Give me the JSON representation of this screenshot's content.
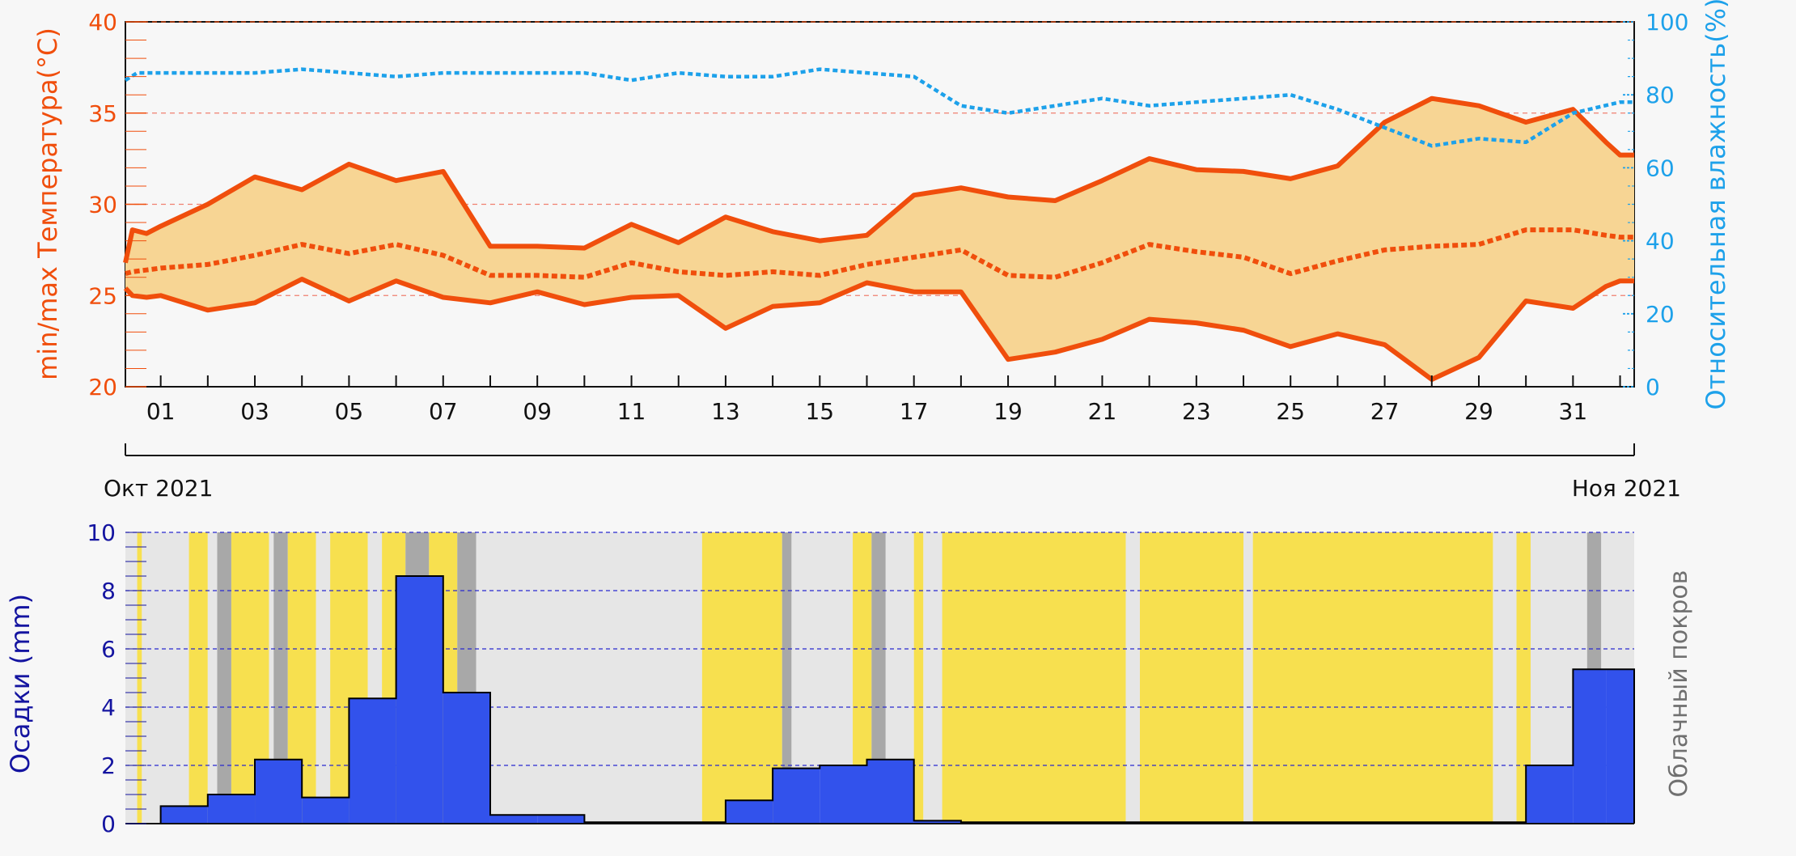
{
  "chart_data": [
    {
      "type": "line",
      "ylabel_left": "min/max Температура(°C)",
      "ylabel_right": "Относительная влажность(%)",
      "ylim_left": [
        20,
        40
      ],
      "ylim_right": [
        0,
        100
      ],
      "yticks_left": [
        "20",
        "25",
        "30",
        "35",
        "40"
      ],
      "yticks_right": [
        "0",
        "20",
        "40",
        "60",
        "80",
        "100"
      ],
      "x_tick_labels": [
        "01",
        "03",
        "05",
        "07",
        "09",
        "11",
        "13",
        "15",
        "17",
        "19",
        "21",
        "23",
        "25",
        "27",
        "29",
        "31"
      ],
      "x_tick_days": [
        1,
        3,
        5,
        7,
        9,
        11,
        13,
        15,
        17,
        19,
        21,
        23,
        25,
        27,
        29,
        31
      ],
      "xlim_days": [
        0.25,
        32.3
      ],
      "month_labels": {
        "left": "Окт 2021",
        "right": "Ноя 2021"
      },
      "grid": "dashed horizontal at 25, 30, 35 °C",
      "colors": {
        "temperature": "#f04e0c",
        "band_fill": "#f7d594",
        "humidity": "#1da1ea",
        "temp_grid": "#f08070",
        "axis": "#111111"
      },
      "days": [
        0.25,
        0.4,
        0.7,
        1,
        2,
        3,
        4,
        5,
        6,
        7,
        8,
        9,
        10,
        11,
        12,
        13,
        14,
        15,
        16,
        17,
        18,
        19,
        20,
        21,
        22,
        23,
        24,
        25,
        26,
        27,
        28,
        29,
        30,
        31,
        31.7,
        32,
        32.3
      ],
      "series": [
        {
          "name": "max",
          "style": "solid",
          "values": [
            26.8,
            28.6,
            28.4,
            28.8,
            30.0,
            31.5,
            30.8,
            32.2,
            31.3,
            31.8,
            27.7,
            27.7,
            27.6,
            28.9,
            27.9,
            29.3,
            28.5,
            28.0,
            28.3,
            30.5,
            30.9,
            30.4,
            30.2,
            31.3,
            32.5,
            31.9,
            31.8,
            31.4,
            32.1,
            34.5,
            35.8,
            35.4,
            34.5,
            35.2,
            33.4,
            32.7,
            32.7
          ]
        },
        {
          "name": "mean",
          "style": "dotted",
          "values": [
            26.2,
            26.3,
            26.4,
            26.5,
            26.7,
            27.2,
            27.8,
            27.3,
            27.8,
            27.2,
            26.1,
            26.1,
            26.0,
            26.8,
            26.3,
            26.1,
            26.3,
            26.1,
            26.7,
            27.1,
            27.5,
            26.1,
            26.0,
            26.8,
            27.8,
            27.4,
            27.1,
            26.2,
            26.9,
            27.5,
            27.7,
            27.8,
            28.6,
            28.6,
            28.3,
            28.2,
            28.2
          ]
        },
        {
          "name": "min",
          "style": "solid",
          "values": [
            25.4,
            25.0,
            24.9,
            25.0,
            24.2,
            24.6,
            25.9,
            24.7,
            25.8,
            24.9,
            24.6,
            25.2,
            24.5,
            24.9,
            25.0,
            23.2,
            24.4,
            24.6,
            25.7,
            25.2,
            25.2,
            21.5,
            21.9,
            22.6,
            23.7,
            23.5,
            23.1,
            22.2,
            22.9,
            22.3,
            20.4,
            21.6,
            24.7,
            24.3,
            25.5,
            25.8,
            25.8
          ]
        },
        {
          "name": "humidity",
          "axis": "right",
          "style": "dotted",
          "points": [
            [
              0.25,
              84
            ],
            [
              0.5,
              86
            ],
            [
              1,
              86
            ],
            [
              3,
              86
            ],
            [
              4,
              87
            ],
            [
              5,
              86
            ],
            [
              6,
              85
            ],
            [
              7,
              86
            ],
            [
              9,
              86
            ],
            [
              10,
              86
            ],
            [
              11,
              84
            ],
            [
              12,
              86
            ],
            [
              13,
              85
            ],
            [
              14,
              85
            ],
            [
              15,
              87
            ],
            [
              16,
              86
            ],
            [
              17,
              85
            ],
            [
              18,
              77
            ],
            [
              19,
              75
            ],
            [
              20,
              77
            ],
            [
              21,
              79
            ],
            [
              22,
              77
            ],
            [
              23,
              78
            ],
            [
              24,
              79
            ],
            [
              25,
              80
            ],
            [
              26,
              76
            ],
            [
              27,
              71
            ],
            [
              28,
              66
            ],
            [
              29,
              68
            ],
            [
              30,
              67
            ],
            [
              31,
              75
            ],
            [
              32,
              78
            ],
            [
              32.3,
              78
            ]
          ]
        }
      ]
    },
    {
      "type": "bar",
      "ylabel_left": "Осадки (mm)",
      "ylabel_right": "Облачный покров",
      "ylim": [
        0,
        10
      ],
      "yticks": [
        "0",
        "2",
        "4",
        "6",
        "8",
        "10"
      ],
      "grid": "dashed horizontal at 2, 4, 6, 8, 10 mm",
      "colors": {
        "bar": "#3252ec",
        "bar_edge": "#000000",
        "axis_text": "#1414a0",
        "grid": "#2828d0",
        "cloud_label": "#707070",
        "cloud_clear": "#f7e04f",
        "cloud_partial": "#e6e6e6",
        "cloud_overcast": "#a8a8a8"
      },
      "day_start": [
        0,
        1,
        2,
        3,
        4,
        5,
        6,
        7,
        8,
        9,
        10,
        11,
        12,
        13,
        14,
        15,
        16,
        17,
        18,
        19,
        20,
        21,
        22,
        23,
        24,
        25,
        26,
        27,
        28,
        29,
        30,
        31,
        31.7
      ],
      "day_end": [
        1,
        2,
        3,
        4,
        5,
        6,
        7,
        8,
        9,
        10,
        11,
        12,
        13,
        14,
        15,
        16,
        17,
        18,
        19,
        20,
        21,
        22,
        23,
        24,
        25,
        26,
        27,
        28,
        29,
        30,
        31,
        31.7,
        32.3
      ],
      "values": [
        0,
        0.6,
        1.0,
        2.2,
        0.9,
        4.3,
        8.5,
        4.5,
        0.3,
        0.3,
        0.05,
        0.05,
        0.05,
        0.8,
        1.9,
        2.0,
        2.2,
        0.1,
        0.05,
        0.05,
        0.05,
        0.05,
        0.05,
        0.05,
        0.05,
        0.05,
        0.05,
        0.05,
        0.05,
        0.05,
        2.0,
        5.3,
        5.3
      ],
      "cloud_cover_bands": [
        {
          "from": 0.0,
          "to": 0.5,
          "cover": "partial"
        },
        {
          "from": 0.5,
          "to": 0.6,
          "cover": "clear"
        },
        {
          "from": 0.6,
          "to": 1.6,
          "cover": "partial"
        },
        {
          "from": 1.6,
          "to": 2.0,
          "cover": "clear"
        },
        {
          "from": 2.0,
          "to": 2.2,
          "cover": "partial"
        },
        {
          "from": 2.2,
          "to": 2.5,
          "cover": "overcast"
        },
        {
          "from": 2.5,
          "to": 3.3,
          "cover": "clear"
        },
        {
          "from": 3.3,
          "to": 3.4,
          "cover": "partial"
        },
        {
          "from": 3.4,
          "to": 3.7,
          "cover": "overcast"
        },
        {
          "from": 3.7,
          "to": 4.3,
          "cover": "clear"
        },
        {
          "from": 4.3,
          "to": 4.6,
          "cover": "partial"
        },
        {
          "from": 4.6,
          "to": 5.4,
          "cover": "clear"
        },
        {
          "from": 5.4,
          "to": 5.7,
          "cover": "partial"
        },
        {
          "from": 5.7,
          "to": 6.2,
          "cover": "clear"
        },
        {
          "from": 6.2,
          "to": 6.7,
          "cover": "overcast"
        },
        {
          "from": 6.7,
          "to": 7.3,
          "cover": "clear"
        },
        {
          "from": 7.3,
          "to": 7.7,
          "cover": "overcast"
        },
        {
          "from": 7.7,
          "to": 12.5,
          "cover": "partial"
        },
        {
          "from": 12.5,
          "to": 14.2,
          "cover": "clear"
        },
        {
          "from": 14.2,
          "to": 14.4,
          "cover": "overcast"
        },
        {
          "from": 14.4,
          "to": 15.7,
          "cover": "partial"
        },
        {
          "from": 15.7,
          "to": 16.1,
          "cover": "clear"
        },
        {
          "from": 16.1,
          "to": 16.4,
          "cover": "overcast"
        },
        {
          "from": 16.4,
          "to": 17.0,
          "cover": "partial"
        },
        {
          "from": 17.0,
          "to": 17.2,
          "cover": "clear"
        },
        {
          "from": 17.2,
          "to": 17.6,
          "cover": "partial"
        },
        {
          "from": 17.6,
          "to": 21.5,
          "cover": "clear"
        },
        {
          "from": 21.5,
          "to": 21.8,
          "cover": "partial"
        },
        {
          "from": 21.8,
          "to": 24.0,
          "cover": "clear"
        },
        {
          "from": 24.0,
          "to": 24.2,
          "cover": "partial"
        },
        {
          "from": 24.2,
          "to": 29.3,
          "cover": "clear"
        },
        {
          "from": 29.3,
          "to": 29.8,
          "cover": "partial"
        },
        {
          "from": 29.8,
          "to": 30.1,
          "cover": "clear"
        },
        {
          "from": 30.1,
          "to": 31.3,
          "cover": "partial"
        },
        {
          "from": 31.3,
          "to": 31.6,
          "cover": "overcast"
        },
        {
          "from": 31.6,
          "to": 32.3,
          "cover": "partial"
        }
      ]
    }
  ]
}
